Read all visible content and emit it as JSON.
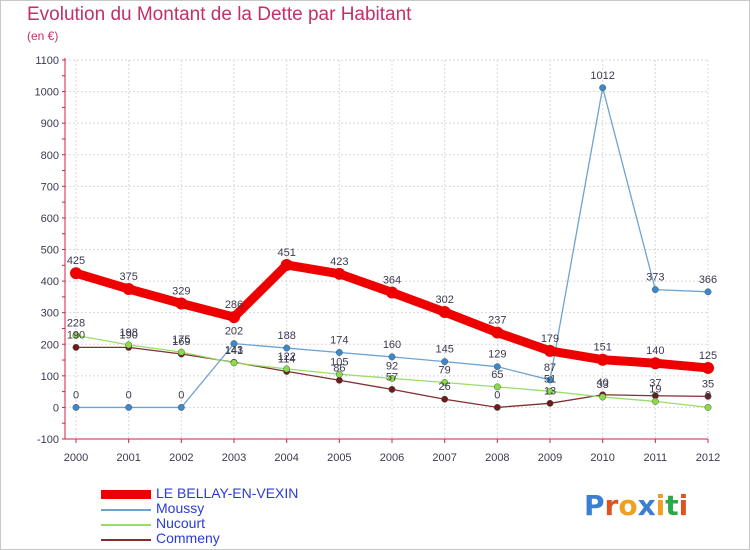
{
  "title": "Evolution du Montant de la Dette par Habitant",
  "subtitle": "(en €)",
  "logo_text": "Proxiti",
  "colors": {
    "title": "#c0306b",
    "axis": "#cc2244",
    "grid": "#d8d8d8",
    "label": "#3a3a50",
    "legend_text": "#2a3ad8"
  },
  "chart_data": {
    "type": "line",
    "title": "Evolution du Montant de la Dette par Habitant",
    "ylabel": "(en €)",
    "xlabel": "",
    "ylim": [
      -100,
      1100
    ],
    "yticks": [
      -100,
      0,
      100,
      200,
      300,
      400,
      500,
      600,
      700,
      800,
      900,
      1000,
      1100
    ],
    "x": [
      "2000",
      "2001",
      "2002",
      "2003",
      "2004",
      "2005",
      "2006",
      "2007",
      "2008",
      "2009",
      "2010",
      "2011",
      "2012"
    ],
    "grid": true,
    "legend_position": "bottom-left",
    "series": [
      {
        "name": "LE BELLAY-EN-VEXIN",
        "color": "#ee0000",
        "marker": "#ee0000",
        "width": 9,
        "dot": 6,
        "values": [
          425,
          375,
          329,
          286,
          451,
          423,
          364,
          302,
          237,
          179,
          151,
          140,
          125
        ],
        "labels": [
          "425",
          "375",
          "329",
          "286",
          "451",
          "423",
          "364",
          "302",
          "237",
          "179",
          "151",
          "140",
          "125"
        ]
      },
      {
        "name": "Moussy",
        "color": "#6ea3d0",
        "marker": "#3b88cc",
        "width": 1.3,
        "dot": 3.2,
        "values": [
          0,
          0,
          0,
          202,
          188,
          174,
          160,
          145,
          129,
          87,
          1012,
          373,
          366
        ],
        "labels": [
          "0",
          "0",
          "0",
          "202",
          "188",
          "174",
          "160",
          "145",
          "129",
          "87",
          "1012",
          "373",
          "366"
        ]
      },
      {
        "name": "Nucourt",
        "color": "#99dd66",
        "marker": "#88dd44",
        "width": 1.3,
        "dot": 3.2,
        "values": [
          228,
          198,
          175,
          141,
          122,
          105,
          92,
          79,
          65,
          51,
          33,
          19,
          0
        ],
        "labels": [
          "228",
          "198",
          "175",
          "141",
          "122",
          "105",
          "92",
          "79",
          "65",
          "51",
          "33",
          "19",
          "0"
        ]
      },
      {
        "name": "Commeny",
        "color": "#803030",
        "marker": "#6b1c1c",
        "width": 1.3,
        "dot": 3.2,
        "values": [
          190,
          190,
          169,
          143,
          114,
          86,
          57,
          26,
          0,
          13,
          40,
          37,
          35
        ],
        "labels": [
          "190",
          "190",
          "169",
          "143",
          "114",
          "86",
          "57",
          "26",
          "0",
          "13",
          "40",
          "37",
          "35"
        ]
      }
    ]
  }
}
